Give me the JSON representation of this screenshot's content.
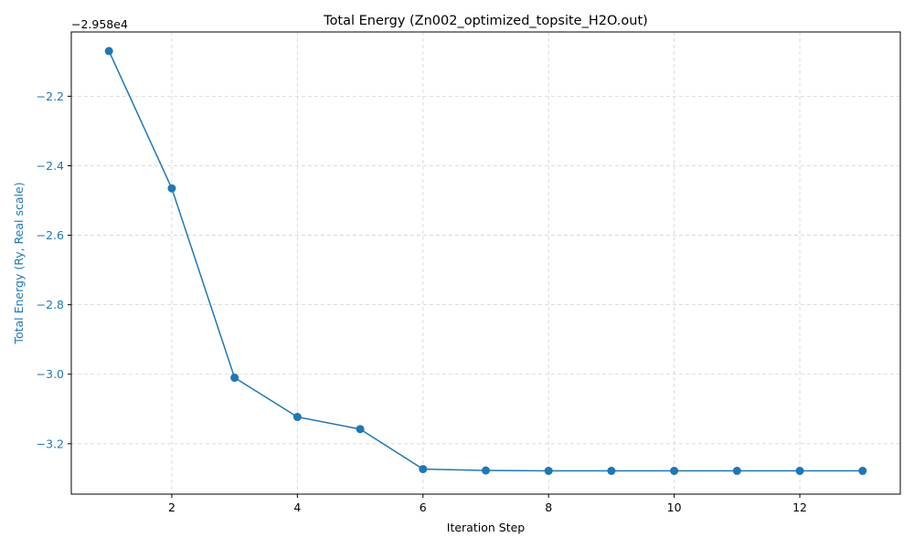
{
  "chart_data": {
    "type": "line",
    "title": "Total Energy (Zn002_optimized_topsite_H2O.out)",
    "xlabel": "Iteration Step",
    "ylabel": "Total Energy (Ry, Real scale)",
    "offset_text": "−2.958e4",
    "x": [
      1,
      2,
      3,
      4,
      5,
      6,
      7,
      8,
      9,
      10,
      11,
      12,
      13
    ],
    "y_offset": -29580,
    "y_relative": [
      -2.07,
      -2.465,
      -3.01,
      -3.123,
      -3.158,
      -3.273,
      -3.277,
      -3.278,
      -3.278,
      -3.278,
      -3.278,
      -3.278,
      -3.278
    ],
    "xlim": [
      0.4,
      13.6
    ],
    "ylim_relative": [
      -3.345,
      -2.015
    ],
    "xticks": [
      2,
      4,
      6,
      8,
      10,
      12
    ],
    "yticks": [
      -3.2,
      -3.0,
      -2.8,
      -2.6,
      -2.4,
      -2.2
    ],
    "ytick_labels": [
      "−3.2",
      "−3.0",
      "−2.8",
      "−2.6",
      "−2.4",
      "−2.2"
    ],
    "grid": true,
    "marker": "circle",
    "colors": {
      "line": "#1f77b4",
      "ylabel": "#1f77b4",
      "grid": "#d3d3d3"
    }
  }
}
